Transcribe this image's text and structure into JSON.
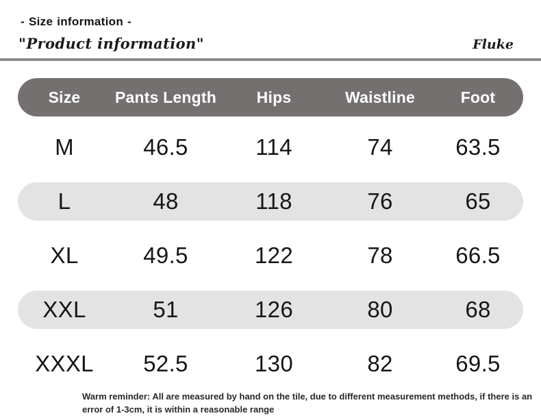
{
  "header": {
    "tag": "- Size information -",
    "title": "\"Product information\"",
    "brand": "Fluke"
  },
  "chart_data": {
    "type": "table",
    "title": "Size information",
    "columns": [
      "Size",
      "Pants Length",
      "Hips",
      "Waistline",
      "Foot"
    ],
    "rows": [
      [
        "M",
        "46.5",
        "114",
        "74",
        "63.5"
      ],
      [
        "L",
        "48",
        "118",
        "76",
        "65"
      ],
      [
        "XL",
        "49.5",
        "122",
        "78",
        "66.5"
      ],
      [
        "XXL",
        "51",
        "126",
        "80",
        "68"
      ],
      [
        "XXXL",
        "52.5",
        "130",
        "82",
        "69.5"
      ]
    ]
  },
  "footer": {
    "reminder": "Warm reminder: All are measured by hand on the tile, due to different measurement methods, if there is an error of 1-3cm, it is within a reasonable range"
  },
  "colors": {
    "header_row_bg": "#747070",
    "striped_row_bg": "#e4e3e3",
    "divider": "#8d8b8b",
    "header_text": "#ffffff",
    "body_text": "#161616"
  }
}
